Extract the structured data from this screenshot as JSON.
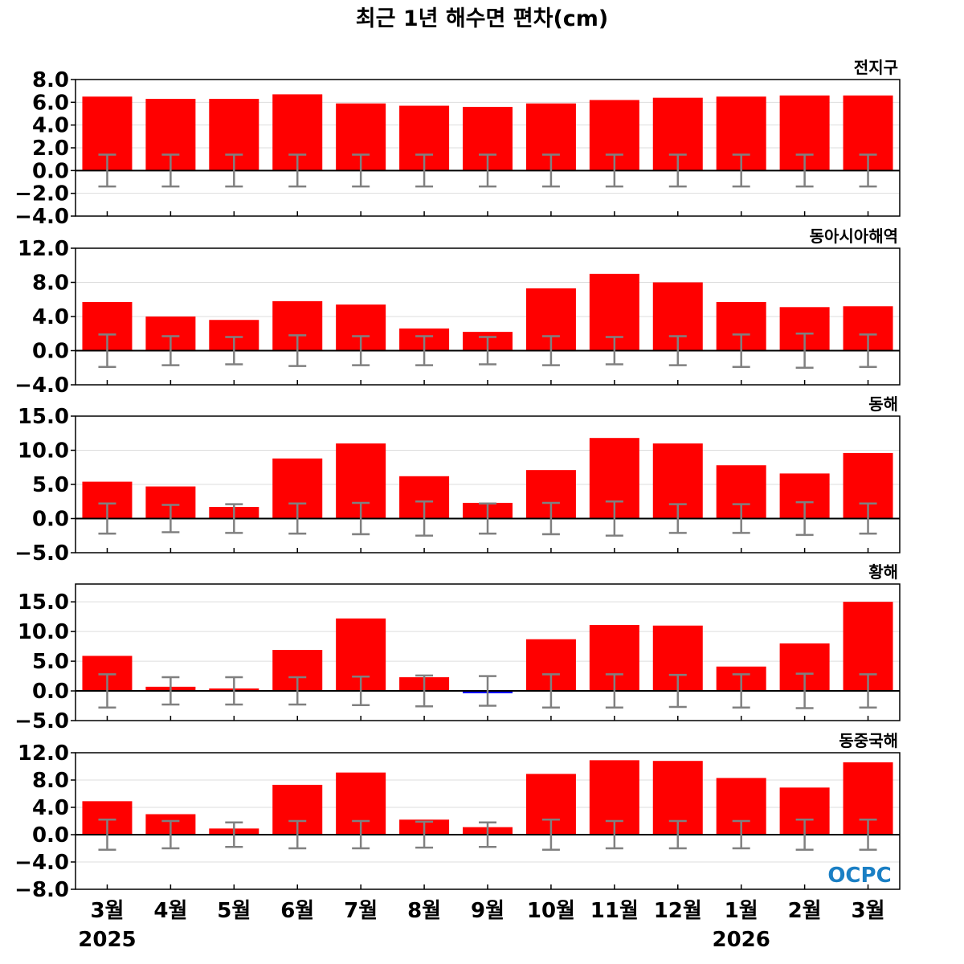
{
  "title": "최근 1년 해수면 편차(cm)",
  "months": [
    "3월",
    "4월",
    "5월",
    "6월",
    "7월",
    "8월",
    "9월",
    "10월",
    "11월",
    "12월",
    "1월",
    "2월",
    "3월"
  ],
  "years": [
    {
      "label": "2025",
      "month_index": 0
    },
    {
      "label": "2026",
      "month_index": 10
    }
  ],
  "logo": "OCPC",
  "colors": {
    "positive": "#ff0000",
    "negative": "#0000ff",
    "errorbar": "#808080",
    "zero_line": "#000000"
  },
  "chart_data": [
    {
      "type": "bar",
      "region": "전지구",
      "categories": [
        "3월",
        "4월",
        "5월",
        "6월",
        "7월",
        "8월",
        "9월",
        "10월",
        "11월",
        "12월",
        "1월",
        "2월",
        "3월"
      ],
      "values": [
        6.5,
        6.3,
        6.3,
        6.7,
        5.9,
        5.7,
        5.6,
        5.9,
        6.2,
        6.4,
        6.5,
        6.6,
        6.6
      ],
      "error": [
        1.4,
        1.4,
        1.4,
        1.4,
        1.4,
        1.4,
        1.4,
        1.4,
        1.4,
        1.4,
        1.4,
        1.4,
        1.4
      ],
      "ylim": [
        -4.0,
        8.0
      ],
      "yticks": [
        "8.0",
        "6.0",
        "4.0",
        "2.0",
        "0.0",
        "−2.0",
        "−4.0"
      ],
      "ytick_values": [
        8,
        6,
        4,
        2,
        0,
        -2,
        -4
      ],
      "grid": true
    },
    {
      "type": "bar",
      "region": "동아시아해역",
      "categories": [
        "3월",
        "4월",
        "5월",
        "6월",
        "7월",
        "8월",
        "9월",
        "10월",
        "11월",
        "12월",
        "1월",
        "2월",
        "3월"
      ],
      "values": [
        5.7,
        4.0,
        3.6,
        5.8,
        5.4,
        2.6,
        2.2,
        7.3,
        9.0,
        8.0,
        5.7,
        5.1,
        5.2
      ],
      "error": [
        1.9,
        1.7,
        1.6,
        1.8,
        1.7,
        1.7,
        1.6,
        1.7,
        1.6,
        1.7,
        1.9,
        2.0,
        1.9
      ],
      "ylim": [
        -4.0,
        12.0
      ],
      "yticks": [
        "12.0",
        "8.0",
        "4.0",
        "0.0",
        "−4.0"
      ],
      "ytick_values": [
        12,
        8,
        4,
        0,
        -4
      ],
      "grid": true
    },
    {
      "type": "bar",
      "region": "동해",
      "categories": [
        "3월",
        "4월",
        "5월",
        "6월",
        "7월",
        "8월",
        "9월",
        "10월",
        "11월",
        "12월",
        "1월",
        "2월",
        "3월"
      ],
      "values": [
        5.4,
        4.7,
        1.7,
        8.8,
        11.0,
        6.2,
        2.3,
        7.1,
        11.8,
        11.0,
        7.8,
        6.6,
        9.6
      ],
      "error": [
        2.2,
        2.0,
        2.1,
        2.2,
        2.3,
        2.5,
        2.2,
        2.3,
        2.5,
        2.1,
        2.1,
        2.4,
        2.2
      ],
      "ylim": [
        -5.0,
        15.0
      ],
      "yticks": [
        "15.0",
        "10.0",
        "5.0",
        "0.0",
        "−5.0"
      ],
      "ytick_values": [
        15,
        10,
        5,
        0,
        -5
      ],
      "grid": true
    },
    {
      "type": "bar",
      "region": "황해",
      "categories": [
        "3월",
        "4월",
        "5월",
        "6월",
        "7월",
        "8월",
        "9월",
        "10월",
        "11월",
        "12월",
        "1월",
        "2월",
        "3월"
      ],
      "values": [
        5.9,
        0.7,
        0.4,
        6.9,
        12.2,
        2.3,
        -0.3,
        8.7,
        11.1,
        11.0,
        4.1,
        8.0,
        15.0
      ],
      "error": [
        2.8,
        2.3,
        2.3,
        2.3,
        2.4,
        2.6,
        2.5,
        2.8,
        2.8,
        2.7,
        2.8,
        2.9,
        2.8
      ],
      "ylim": [
        -5.0,
        18.0
      ],
      "yticks": [
        "15.0",
        "10.0",
        "5.0",
        "0.0",
        "−5.0"
      ],
      "ytick_values": [
        15,
        10,
        5,
        0,
        -5
      ],
      "grid": true
    },
    {
      "type": "bar",
      "region": "동중국해",
      "categories": [
        "3월",
        "4월",
        "5월",
        "6월",
        "7월",
        "8월",
        "9월",
        "10월",
        "11월",
        "12월",
        "1월",
        "2월",
        "3월"
      ],
      "values": [
        4.9,
        3.0,
        0.9,
        7.3,
        9.1,
        2.2,
        1.1,
        8.9,
        10.9,
        10.8,
        8.3,
        6.9,
        10.6
      ],
      "error": [
        2.2,
        2.0,
        1.8,
        2.0,
        2.0,
        1.9,
        1.8,
        2.2,
        2.0,
        2.0,
        2.0,
        2.2,
        2.2
      ],
      "ylim": [
        -8.0,
        12.0
      ],
      "yticks": [
        "12.0",
        "8.0",
        "4.0",
        "0.0",
        "−4.0",
        "−8.0"
      ],
      "ytick_values": [
        12,
        8,
        4,
        0,
        -4,
        -8
      ],
      "grid": true
    }
  ]
}
